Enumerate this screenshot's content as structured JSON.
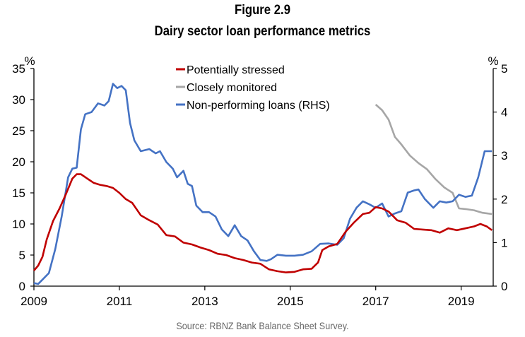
{
  "chart_data": {
    "type": "line",
    "title": "Figure 2.9",
    "subtitle": "Dairy sector loan performance metrics",
    "source": "Source: RBNZ Bank Balance Sheet Survey.",
    "xlabel": "",
    "ylabel_left": "%",
    "ylabel_right": "%",
    "xlim": [
      2009,
      2019.75
    ],
    "ylim_left": [
      0,
      35
    ],
    "ylim_right": [
      0,
      5
    ],
    "x_ticks": [
      "2009",
      "2011",
      "2013",
      "2015",
      "2017",
      "2019"
    ],
    "y_ticks_left": [
      "0",
      "5",
      "10",
      "15",
      "20",
      "25",
      "30",
      "35"
    ],
    "y_ticks_right": [
      "0",
      "1",
      "2",
      "3",
      "4",
      "5"
    ],
    "grid": false,
    "legend_position": "top-center",
    "series": [
      {
        "name": "Potentially stressed",
        "axis": "left",
        "color": "#C00000",
        "x": [
          2009.0,
          2009.1,
          2009.2,
          2009.3,
          2009.45,
          2009.6,
          2009.75,
          2009.9,
          2010.0,
          2010.1,
          2010.25,
          2010.4,
          2010.55,
          2010.7,
          2010.85,
          2011.0,
          2011.15,
          2011.3,
          2011.5,
          2011.7,
          2011.9,
          2012.1,
          2012.3,
          2012.5,
          2012.7,
          2012.9,
          2013.1,
          2013.3,
          2013.5,
          2013.7,
          2013.9,
          2014.1,
          2014.3,
          2014.5,
          2014.7,
          2014.9,
          2015.1,
          2015.3,
          2015.5,
          2015.65,
          2015.75,
          2015.9,
          2016.1,
          2016.3,
          2016.5,
          2016.7,
          2016.85,
          2017.0,
          2017.15,
          2017.3,
          2017.5,
          2017.7,
          2017.9,
          2018.1,
          2018.3,
          2018.5,
          2018.7,
          2018.9,
          2019.1,
          2019.3,
          2019.45,
          2019.6,
          2019.72
        ],
        "values": [
          2.5,
          3.3,
          4.7,
          7.5,
          10.5,
          12.5,
          14.8,
          17.3,
          18.0,
          18.0,
          17.3,
          16.6,
          16.3,
          16.1,
          15.8,
          15.0,
          14.0,
          13.4,
          11.4,
          10.6,
          9.9,
          8.2,
          8.0,
          7.0,
          6.7,
          6.2,
          5.8,
          5.2,
          5.0,
          4.5,
          4.2,
          3.8,
          3.6,
          2.7,
          2.4,
          2.2,
          2.3,
          2.7,
          2.8,
          3.8,
          5.8,
          6.4,
          6.8,
          8.8,
          10.3,
          11.6,
          11.8,
          12.7,
          12.5,
          12.0,
          10.6,
          10.2,
          9.2,
          9.1,
          9.0,
          8.6,
          9.3,
          9.0,
          9.3,
          9.6,
          10.0,
          9.6,
          9.0
        ]
      },
      {
        "name": "Closely monitored",
        "axis": "left",
        "color": "#A6A6A6",
        "x": [
          2017.0,
          2017.15,
          2017.3,
          2017.45,
          2017.6,
          2017.8,
          2018.0,
          2018.2,
          2018.4,
          2018.6,
          2018.8,
          2018.95,
          2019.1,
          2019.3,
          2019.5,
          2019.72
        ],
        "values": [
          29.2,
          28.3,
          26.8,
          24.0,
          22.8,
          21.0,
          19.8,
          18.8,
          17.2,
          15.9,
          15.0,
          12.5,
          12.4,
          12.2,
          11.8,
          11.6
        ]
      },
      {
        "name": "Non-performing loans (RHS)",
        "axis": "right",
        "color": "#4472C4",
        "x": [
          2009.0,
          2009.1,
          2009.2,
          2009.35,
          2009.5,
          2009.65,
          2009.8,
          2009.9,
          2010.0,
          2010.1,
          2010.2,
          2010.35,
          2010.5,
          2010.65,
          2010.75,
          2010.85,
          2010.95,
          2011.05,
          2011.15,
          2011.25,
          2011.35,
          2011.5,
          2011.7,
          2011.85,
          2011.95,
          2012.1,
          2012.25,
          2012.35,
          2012.5,
          2012.6,
          2012.7,
          2012.8,
          2012.95,
          2013.1,
          2013.25,
          2013.4,
          2013.55,
          2013.7,
          2013.85,
          2014.0,
          2014.15,
          2014.3,
          2014.45,
          2014.55,
          2014.7,
          2014.9,
          2015.1,
          2015.3,
          2015.5,
          2015.7,
          2015.9,
          2016.1,
          2016.25,
          2016.4,
          2016.55,
          2016.7,
          2016.85,
          2017.0,
          2017.15,
          2017.3,
          2017.45,
          2017.6,
          2017.75,
          2017.9,
          2018.0,
          2018.15,
          2018.35,
          2018.5,
          2018.65,
          2018.8,
          2018.95,
          2019.1,
          2019.25,
          2019.4,
          2019.55,
          2019.65,
          2019.72
        ],
        "values": [
          0.07,
          0.05,
          0.15,
          0.3,
          0.85,
          1.6,
          2.5,
          2.7,
          2.72,
          3.6,
          3.95,
          4.0,
          4.2,
          4.15,
          4.25,
          4.65,
          4.55,
          4.6,
          4.5,
          3.75,
          3.35,
          3.1,
          3.15,
          3.05,
          3.1,
          2.85,
          2.7,
          2.5,
          2.65,
          2.35,
          2.3,
          1.85,
          1.7,
          1.7,
          1.6,
          1.3,
          1.15,
          1.4,
          1.15,
          1.05,
          0.8,
          0.6,
          0.58,
          0.62,
          0.72,
          0.7,
          0.7,
          0.72,
          0.8,
          0.97,
          0.98,
          0.95,
          1.1,
          1.55,
          1.8,
          1.95,
          1.88,
          1.8,
          1.9,
          1.6,
          1.67,
          1.72,
          2.15,
          2.2,
          2.22,
          2.0,
          1.8,
          1.95,
          1.92,
          1.95,
          2.1,
          2.05,
          2.08,
          2.5,
          3.1,
          3.1,
          3.1
        ]
      }
    ]
  }
}
